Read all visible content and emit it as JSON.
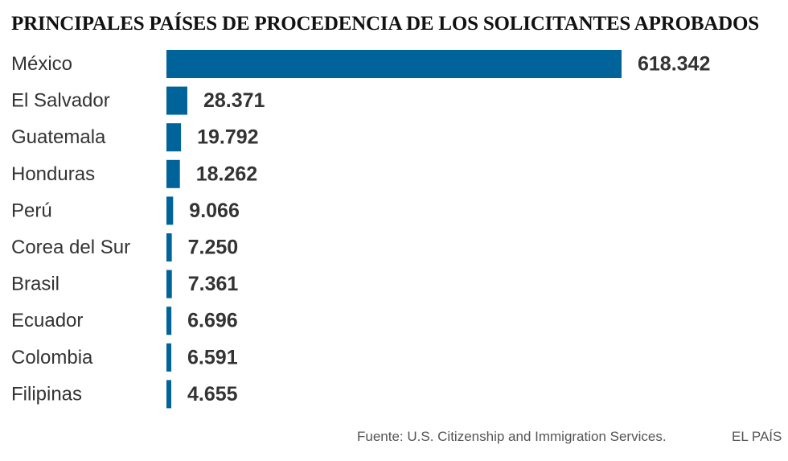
{
  "chart_data": {
    "type": "bar",
    "orientation": "horizontal",
    "title": "PRINCIPALES PAÍSES DE PROCEDENCIA DE LOS SOLICITANTES APROBADOS",
    "categories": [
      "México",
      "El Salvador",
      "Guatemala",
      "Honduras",
      "Perú",
      "Corea del Sur",
      "Brasil",
      "Ecuador",
      "Colombia",
      "Filipinas"
    ],
    "values": [
      618342,
      28371,
      19792,
      18262,
      9066,
      7250,
      7361,
      6696,
      6591,
      4655
    ],
    "value_labels": [
      "618.342",
      "28.371",
      "19.792",
      "18.262",
      "9.066",
      "7.250",
      "7.361",
      "6.696",
      "6.591",
      "4.655"
    ],
    "bar_color": "#00649b",
    "xlim": [
      0,
      618342
    ],
    "grid": false,
    "legend": "none"
  },
  "footer": {
    "source": "Fuente: U.S. Citizenship and Immigration Services.",
    "brand": "EL PAÍS"
  }
}
